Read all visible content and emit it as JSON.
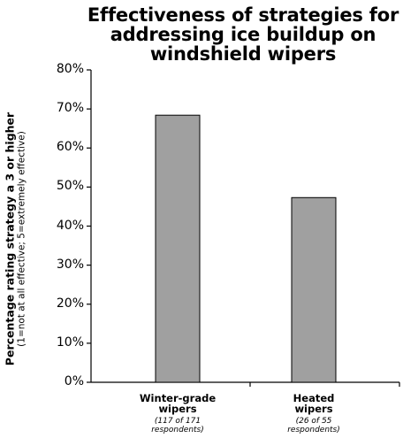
{
  "chart_data": {
    "type": "bar",
    "title": "Effectiveness of strategies for addressing ice buildup on windshield wipers",
    "ylabel": "Percentage rating strategy a 3 or higher",
    "ylabel_note": "(1=not at all effective; 5=extremely effective)",
    "xlabel": "",
    "ylim": [
      0,
      80
    ],
    "yticks": [
      "0%",
      "10%",
      "20%",
      "30%",
      "40%",
      "50%",
      "60%",
      "70%",
      "80%"
    ],
    "categories": [
      "Winter-grade wipers",
      "Heated wipers"
    ],
    "category_lines": [
      [
        "Winter-grade",
        "wipers"
      ],
      [
        "Heated",
        "wipers"
      ]
    ],
    "category_notes": [
      [
        "(117 of 171",
        "respondents)"
      ],
      [
        "(26 of 55",
        "respondents)"
      ]
    ],
    "values": [
      68.4,
      47.3
    ],
    "bar_color": "#a0a0a0",
    "grid": false
  }
}
